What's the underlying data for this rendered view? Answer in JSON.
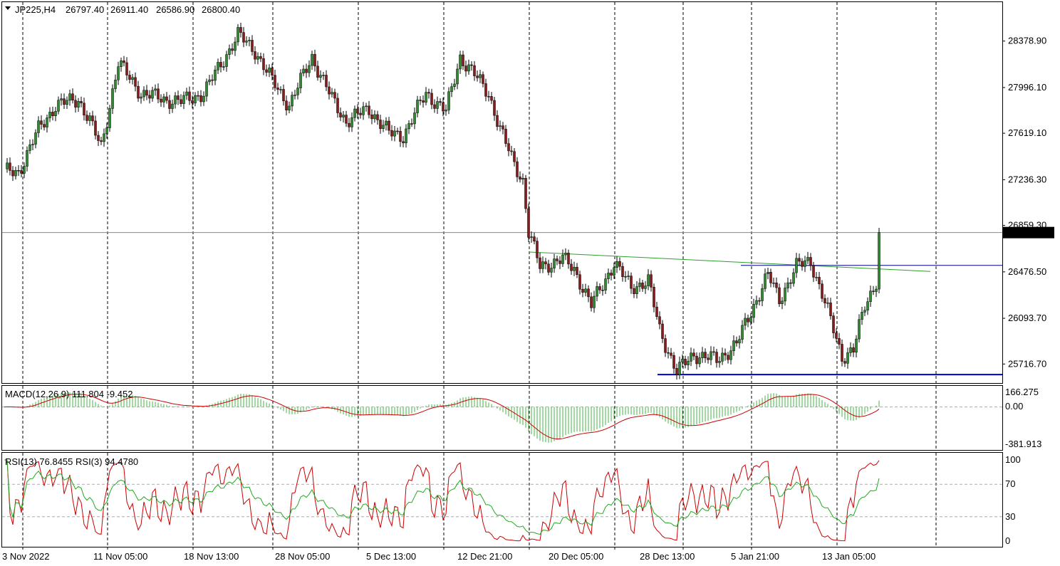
{
  "header": {
    "symbol": "JP225,H4",
    "open": "26797.40",
    "high": "26911.40",
    "low": "26586.90",
    "close": "26800.40"
  },
  "price_axis": {
    "labels": [
      "28378.90",
      "27996.10",
      "27619.10",
      "27236.30",
      "26859.30",
      "26476.50",
      "26093.70",
      "25716.70"
    ],
    "current": "26800.40"
  },
  "time_axis": {
    "labels": [
      "3 Nov 2022",
      "11 Nov 05:00",
      "18 Nov 13:00",
      "28 Nov 05:00",
      "5 Dec 13:00",
      "12 Dec 21:00",
      "20 Dec 05:00",
      "28 Dec 13:00",
      "5 Jan 21:00",
      "13 Jan 05:00"
    ]
  },
  "macd": {
    "label": "MACD(12,26,9) 111.804 -9.452",
    "axis": [
      "166.275",
      "0.00",
      "-381.913"
    ]
  },
  "rsi": {
    "label": "RSI(13) 76.8455  RSI(3) 94.4780",
    "axis": [
      "100",
      "70",
      "30",
      "0"
    ]
  },
  "colors": {
    "bull": "#2e8b2e",
    "bear": "#8b1a1a",
    "trendline": "#2ca02c",
    "support": "#0000cc",
    "resistance": "#000080",
    "macd_hist": "#43b443",
    "macd_signal": "#cc0000",
    "rsi_fast": "#cc0000",
    "rsi_slow": "#22aa22"
  },
  "chart_data": {
    "type": "candlestick",
    "symbol": "JP225",
    "timeframe": "H4",
    "ylim": [
      25560,
      28700
    ],
    "last_price": 26800.4,
    "anchors": [
      [
        0,
        27300
      ],
      [
        5,
        27300
      ],
      [
        12,
        27650
      ],
      [
        18,
        27850
      ],
      [
        26,
        27900
      ],
      [
        30,
        27720
      ],
      [
        34,
        27500
      ],
      [
        40,
        28200
      ],
      [
        48,
        27950
      ],
      [
        56,
        27900
      ],
      [
        62,
        27880
      ],
      [
        70,
        27950
      ],
      [
        75,
        28150
      ],
      [
        82,
        28430
      ],
      [
        88,
        28300
      ],
      [
        94,
        28050
      ],
      [
        100,
        27850
      ],
      [
        108,
        28250
      ],
      [
        115,
        27900
      ],
      [
        120,
        27720
      ],
      [
        128,
        27820
      ],
      [
        135,
        27620
      ],
      [
        140,
        27600
      ],
      [
        148,
        27950
      ],
      [
        155,
        27800
      ],
      [
        160,
        28250
      ],
      [
        165,
        28100
      ],
      [
        170,
        27950
      ],
      [
        174,
        27650
      ],
      [
        178,
        27420
      ],
      [
        182,
        27230
      ],
      [
        184,
        26800
      ],
      [
        188,
        26520
      ],
      [
        196,
        26580
      ],
      [
        200,
        26500
      ],
      [
        206,
        26200
      ],
      [
        214,
        26550
      ],
      [
        220,
        26350
      ],
      [
        226,
        26400
      ],
      [
        230,
        26000
      ],
      [
        236,
        25650
      ],
      [
        242,
        25800
      ],
      [
        250,
        25750
      ],
      [
        257,
        25880
      ],
      [
        263,
        26200
      ],
      [
        268,
        26450
      ],
      [
        272,
        26250
      ],
      [
        278,
        26520
      ],
      [
        283,
        26570
      ],
      [
        289,
        26150
      ],
      [
        294,
        25780
      ],
      [
        298,
        25830
      ],
      [
        302,
        26200
      ],
      [
        306,
        26400
      ],
      [
        307,
        26800
      ]
    ],
    "macd": {
      "ylim": [
        -381.913,
        166.275
      ]
    },
    "rsi": {
      "ylim": [
        0,
        100
      ],
      "levels": [
        70,
        30
      ]
    }
  }
}
